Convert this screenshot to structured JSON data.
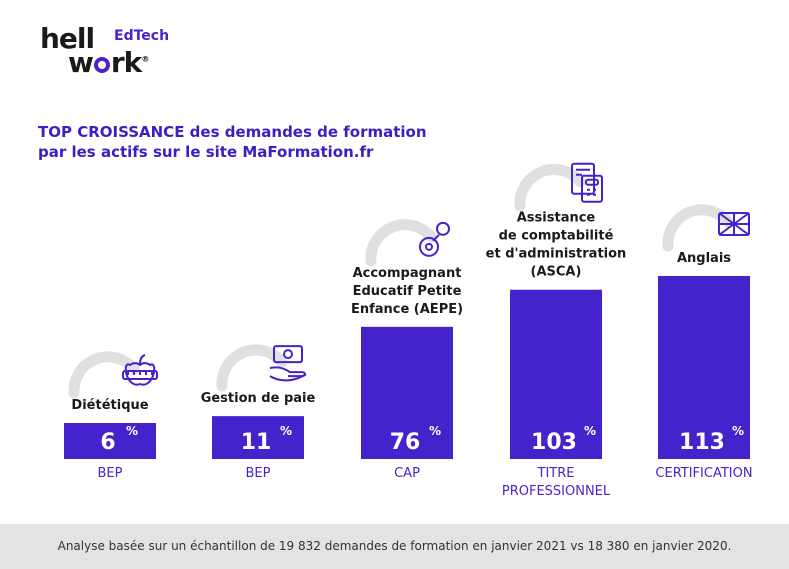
{
  "logo": {
    "line1": "hell",
    "line2": "w",
    "line2b": "rk",
    "tag": "EdTech",
    "mark": "®"
  },
  "title": {
    "line1": "TOP CROISSANCE des demandes de formation",
    "line2": "par les actifs sur le site MaFormation.fr"
  },
  "colors": {
    "bar": "#4422cc",
    "accent": "#3a1fc4",
    "arc": "#e0e0e0",
    "footer_bg": "#e3e3e3"
  },
  "chart_data": {
    "type": "bar",
    "categories": [
      "Diététique",
      "Gestion de paie",
      "Accompagnant Educatif Petite Enfance (AEPE)",
      "Assistance de comptabilité et d'administration (ASCA)",
      "Anglais"
    ],
    "values": [
      6,
      11,
      76,
      103,
      113
    ],
    "value_labels": [
      "6",
      "11",
      "76",
      "103",
      "113"
    ],
    "unit": "%",
    "label_lines": [
      [
        "Diététique"
      ],
      [
        "Gestion de paie"
      ],
      [
        "Accompagnant",
        "Educatif Petite",
        "Enfance (AEPE)"
      ],
      [
        "Assistance",
        "de comptabilité",
        "et d'administration",
        "(ASCA)"
      ],
      [
        "Anglais"
      ]
    ],
    "levels": [
      [
        "BEP"
      ],
      [
        "BEP"
      ],
      [
        "CAP"
      ],
      [
        "TITRE",
        "PROFESSIONNEL"
      ],
      [
        "CERTIFICATION"
      ]
    ],
    "icons": [
      "apple-measure-icon",
      "money-hand-icon",
      "pacifier-icon",
      "calculator-document-icon",
      "uk-flag-icon"
    ],
    "xlabel": "",
    "ylabel": ""
  },
  "footer": {
    "note": "Analyse basée sur un échantillon de 19 832 demandes de formation en janvier 2021 vs 18 380 en janvier 2020."
  }
}
